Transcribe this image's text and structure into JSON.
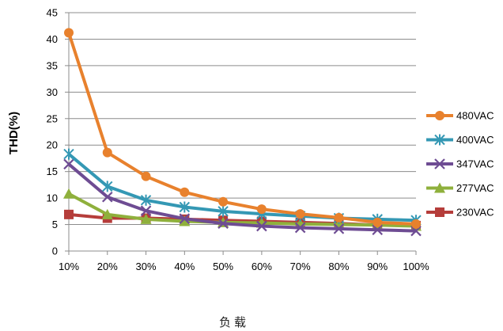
{
  "chart_data": {
    "type": "line",
    "title": "",
    "xlabel": "负载",
    "ylabel": "THD(%)",
    "categories": [
      "10%",
      "20%",
      "30%",
      "40%",
      "50%",
      "60%",
      "70%",
      "80%",
      "90%",
      "100%"
    ],
    "ylim": [
      0,
      45
    ],
    "yticks": [
      0,
      5,
      10,
      15,
      20,
      25,
      30,
      35,
      40,
      45
    ],
    "grid": "horizontal",
    "legend_position": "right",
    "series": [
      {
        "name": "480VAC",
        "color": "#e8812d",
        "marker": "circle",
        "values": [
          41.2,
          18.6,
          14.1,
          11.1,
          9.3,
          7.9,
          7.0,
          6.3,
          5.4,
          5.1
        ]
      },
      {
        "name": "400VAC",
        "color": "#3498b4",
        "marker": "star",
        "values": [
          18.3,
          12.2,
          9.6,
          8.3,
          7.5,
          7.0,
          6.6,
          6.2,
          6.0,
          5.8
        ]
      },
      {
        "name": "347VAC",
        "color": "#6e4c93",
        "marker": "x",
        "values": [
          16.4,
          10.2,
          7.6,
          6.1,
          5.2,
          4.7,
          4.4,
          4.2,
          4.0,
          3.8
        ]
      },
      {
        "name": "277VAC",
        "color": "#8fb03c",
        "marker": "triangle",
        "values": [
          10.8,
          6.9,
          6.0,
          5.6,
          5.4,
          5.3,
          5.1,
          5.0,
          4.9,
          4.7
        ]
      },
      {
        "name": "230VAC",
        "color": "#b53d3a",
        "marker": "square",
        "values": [
          6.9,
          6.2,
          6.2,
          6.0,
          5.8,
          5.6,
          5.4,
          5.2,
          4.9,
          4.8
        ]
      }
    ]
  }
}
